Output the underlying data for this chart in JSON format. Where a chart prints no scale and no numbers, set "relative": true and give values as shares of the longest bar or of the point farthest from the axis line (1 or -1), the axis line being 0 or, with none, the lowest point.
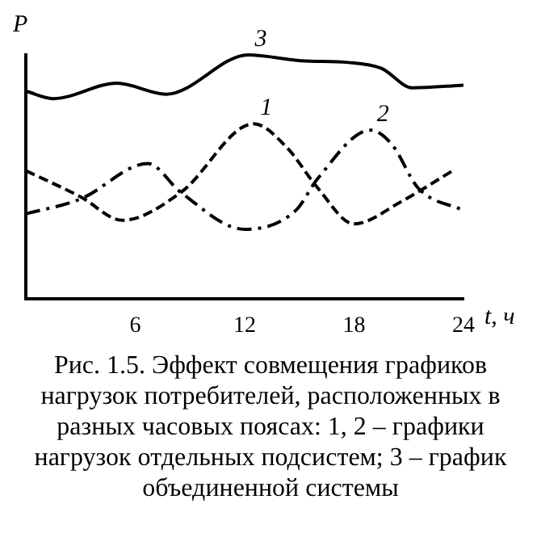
{
  "chart_data": {
    "type": "line",
    "relative": true,
    "xlabel": "t, ч",
    "ylabel": "P",
    "xlim": [
      0,
      24
    ],
    "xticks": [
      6,
      12,
      18,
      24
    ],
    "grid": false,
    "legend": false,
    "marker": "none",
    "annotations": [
      "Рис. 1.5. Эффект совмещения графиков нагрузок потребителей, расположенных в разных часовых поясах: 1, 2 – графики нагрузок отдельных подсистем; 3 – график объединенной системы"
    ],
    "series": [
      {
        "name": "3",
        "color": "#000000",
        "line_style": "solid",
        "x": [
          0,
          1.5,
          5.0,
          7.7,
          12.2,
          15.1,
          17.7,
          19.5,
          21.2,
          24
        ],
        "values": [
          0.852,
          0.821,
          0.884,
          0.839,
          1,
          0.976,
          0.969,
          0.945,
          0.865,
          0.876
        ]
      },
      {
        "name": "1",
        "color": "#000000",
        "line_style": "dashed",
        "x": [
          0,
          3.0,
          5.3,
          8.5,
          12.5,
          14.3,
          16.0,
          18.0,
          20.6,
          23.5
        ],
        "values": [
          0.526,
          0.419,
          0.323,
          0.437,
          0.718,
          0.622,
          0.456,
          0.308,
          0.4,
          0.53
        ]
      },
      {
        "name": "2",
        "color": "#000000",
        "line_style": "dashdot",
        "x": [
          0,
          3.0,
          6.7,
          8.5,
          12.0,
          14.8,
          16.0,
          18.9,
          20.1,
          21.5,
          24
        ],
        "values": [
          0.349,
          0.41,
          0.555,
          0.437,
          0.286,
          0.363,
          0.493,
          0.692,
          0.631,
          0.456,
          0.363
        ]
      }
    ]
  }
}
